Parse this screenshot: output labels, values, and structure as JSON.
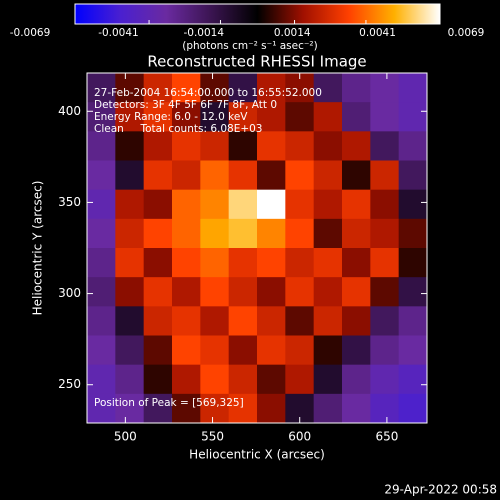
{
  "chart_data": {
    "type": "heatmap",
    "title": "Reconstructed RHESSI Image",
    "xlabel": "Heliocentric X (arcsec)",
    "ylabel": "Heliocentric Y (arcsec)",
    "xlim": [
      478,
      673
    ],
    "ylim": [
      229,
      421
    ],
    "xticks": [
      500,
      550,
      600,
      650
    ],
    "yticks": [
      250,
      300,
      350,
      400
    ],
    "colorbar": {
      "label": "(photons cm⁻² s⁻¹ asec⁻²)",
      "clim": [
        -0.0069,
        0.0069
      ],
      "ticks": [
        -0.0069,
        -0.0041,
        -0.0014,
        0.0014,
        0.0041,
        0.0069
      ],
      "colormap": [
        "#0000ff",
        "#4a20d0",
        "#6a2aa0",
        "#3a1450",
        "#000000",
        "#a01000",
        "#ff4000",
        "#ffb000",
        "#ffffff"
      ]
    },
    "annotations": [
      "27-Feb-2004 16:54:00.000 to 16:55:52.000",
      "Detectors: 3F 4F 5F 6F 7F 8F, Att 0",
      "Energy Range: 6.0 - 12.0 keV",
      "Clean     Total counts: 6.08E+03",
      "Position of Peak = [569,325]"
    ],
    "footer": "29-Apr-2022 00:58",
    "z": [
      [
        -0.002,
        0.001,
        0.0025,
        0.0035,
        0.001,
        -0.0015,
        0.002,
        0.0015,
        -0.002,
        -0.003,
        -0.0035,
        -0.004
      ],
      [
        -0.0025,
        0.002,
        0.003,
        0.0015,
        -0.001,
        0.0025,
        0.002,
        0.001,
        0.002,
        -0.0025,
        -0.0035,
        -0.004
      ],
      [
        -0.003,
        0.0005,
        0.002,
        0.003,
        0.0025,
        0.0005,
        0.003,
        0.0025,
        0.0015,
        0.002,
        -0.002,
        -0.003
      ],
      [
        -0.0035,
        -0.001,
        0.003,
        0.0025,
        0.004,
        0.003,
        0.001,
        0.0035,
        0.0025,
        0.0005,
        0.0025,
        -0.002
      ],
      [
        -0.004,
        0.002,
        0.0015,
        0.004,
        0.0045,
        0.006,
        0.0069,
        0.003,
        0.002,
        0.003,
        0.0015,
        -0.001
      ],
      [
        -0.0035,
        0.0025,
        0.0035,
        0.004,
        0.005,
        0.0055,
        0.0045,
        0.0035,
        0.001,
        0.0025,
        0.002,
        0.001
      ],
      [
        -0.003,
        0.003,
        0.0015,
        0.0035,
        0.004,
        0.003,
        0.0035,
        0.0025,
        0.003,
        0.0015,
        0.003,
        0.0005
      ],
      [
        -0.0025,
        0.0015,
        0.003,
        0.002,
        0.0035,
        0.0025,
        0.0015,
        0.003,
        0.002,
        0.003,
        0.001,
        -0.0015
      ],
      [
        -0.003,
        -0.001,
        0.0025,
        0.003,
        0.002,
        0.0035,
        0.0025,
        0.001,
        0.0025,
        0.0015,
        -0.002,
        -0.003
      ],
      [
        -0.0035,
        -0.002,
        0.001,
        0.0035,
        0.003,
        0.0015,
        0.003,
        0.0025,
        0.0005,
        -0.0015,
        -0.003,
        -0.0035
      ],
      [
        -0.004,
        -0.003,
        0.0005,
        0.002,
        0.0035,
        0.0025,
        0.001,
        0.002,
        -0.001,
        -0.003,
        -0.004,
        -0.0045
      ],
      [
        -0.004,
        -0.0035,
        -0.002,
        0.001,
        0.0025,
        0.003,
        0.0015,
        -0.001,
        -0.0025,
        -0.0035,
        -0.0045,
        -0.005
      ]
    ]
  }
}
